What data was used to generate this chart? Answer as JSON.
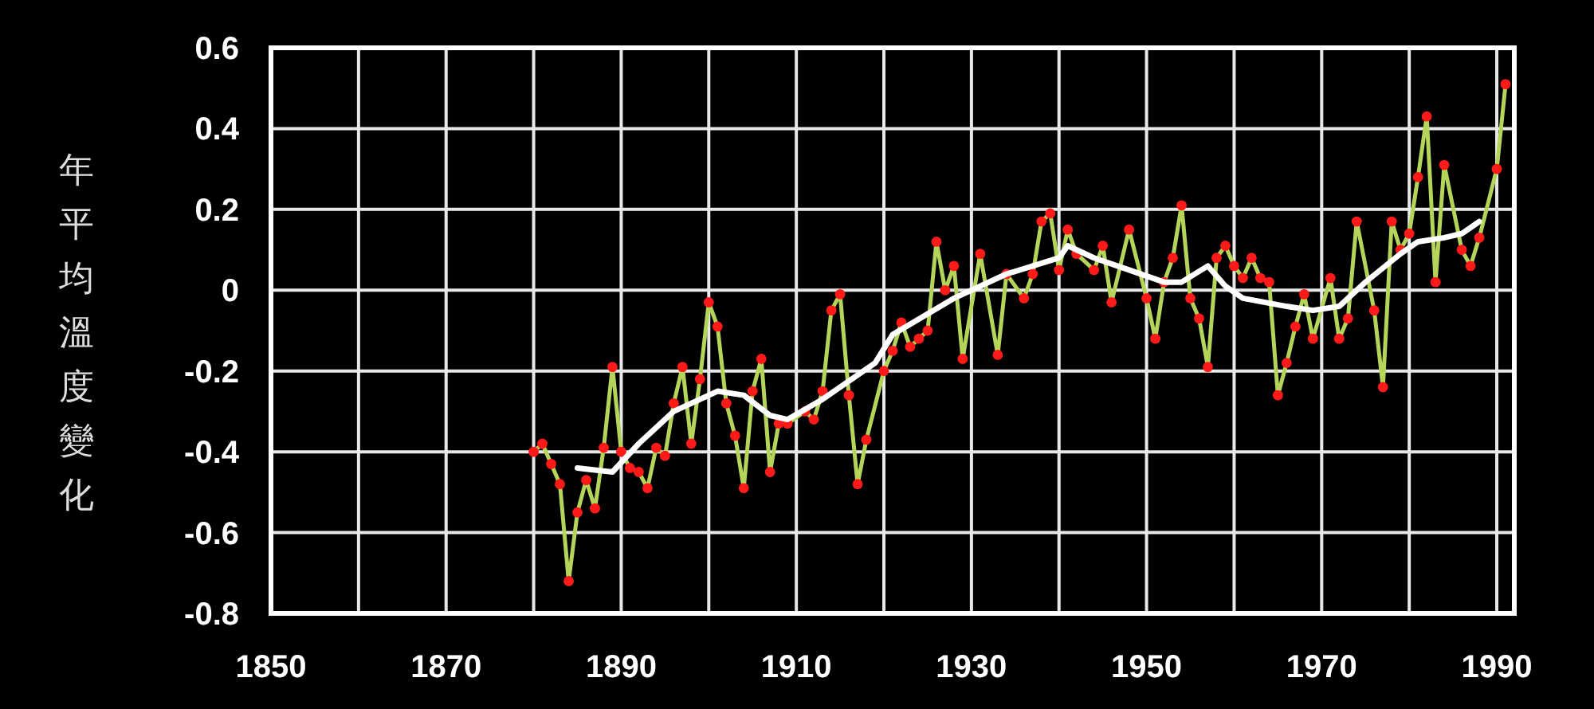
{
  "chart_data": {
    "type": "line",
    "ylabel": "年平均溫度變化",
    "xlim": [
      1850,
      1992
    ],
    "ylim": [
      -0.8,
      0.6
    ],
    "xticks": [
      1850,
      {
        "value": 1860,
        "label": null
      },
      1870,
      {
        "value": 1880,
        "label": null
      },
      1890,
      {
        "value": 1900,
        "label": null
      },
      1910,
      {
        "value": 1920,
        "label": null
      },
      1930,
      {
        "value": 1940,
        "label": null
      },
      1950,
      {
        "value": 1960,
        "label": null
      },
      1970,
      {
        "value": 1980,
        "label": null
      },
      1990
    ],
    "yticks": [
      -0.8,
      -0.6,
      -0.4,
      -0.2,
      0,
      0.2,
      0.4,
      0.6
    ],
    "grid": true,
    "series": [
      {
        "color": "#b5d55a",
        "marker": "circle",
        "x": [
          1880,
          1881,
          1882,
          1883,
          1884,
          1885,
          1886,
          1887,
          1888,
          1889,
          1890,
          1891,
          1892,
          1893,
          1894,
          1895,
          1896,
          1897,
          1898,
          1899,
          1900,
          1901,
          1902,
          1903,
          1904,
          1905,
          1906,
          1907,
          1908,
          1909,
          1911,
          1912,
          1913,
          1914,
          1915,
          1916,
          1917,
          1918,
          1920,
          1921,
          1922,
          1923,
          1924,
          1925,
          1926,
          1927,
          1928,
          1929,
          1931,
          1933,
          1934,
          1936,
          1937,
          1938,
          1939,
          1940,
          1941,
          1942,
          1944,
          1945,
          1946,
          1948,
          1950,
          1951,
          1952,
          1953,
          1954,
          1955,
          1956,
          1957,
          1958,
          1959,
          1960,
          1961,
          1962,
          1963,
          1964,
          1965,
          1966,
          1967,
          1968,
          1969,
          1971,
          1972,
          1973,
          1974,
          1976,
          1977,
          1978,
          1979,
          1980,
          1981,
          1982,
          1983,
          1984,
          1986,
          1987,
          1988,
          1990,
          1991
        ],
        "values": [
          -0.4,
          -0.38,
          -0.43,
          -0.48,
          -0.72,
          -0.55,
          -0.47,
          -0.54,
          -0.39,
          -0.19,
          -0.4,
          -0.44,
          -0.45,
          -0.49,
          -0.39,
          -0.41,
          -0.28,
          -0.19,
          -0.38,
          -0.22,
          -0.03,
          -0.09,
          -0.28,
          -0.36,
          -0.49,
          -0.25,
          -0.17,
          -0.45,
          -0.33,
          -0.33,
          -0.3,
          -0.32,
          -0.25,
          -0.05,
          -0.01,
          -0.26,
          -0.48,
          -0.37,
          -0.2,
          -0.15,
          -0.08,
          -0.14,
          -0.12,
          -0.1,
          0.12,
          0.0,
          0.06,
          -0.17,
          0.09,
          -0.16,
          0.04,
          -0.02,
          0.04,
          0.17,
          0.19,
          0.05,
          0.15,
          0.09,
          0.05,
          0.11,
          -0.03,
          0.15,
          -0.02,
          -0.12,
          0.02,
          0.08,
          0.21,
          -0.02,
          -0.07,
          -0.19,
          0.08,
          0.11,
          0.06,
          0.03,
          0.08,
          0.03,
          0.02,
          -0.26,
          -0.18,
          -0.09,
          -0.01,
          -0.12,
          0.03,
          -0.12,
          -0.07,
          0.17,
          -0.05,
          -0.24,
          0.17,
          0.1,
          0.14,
          0.28,
          0.43,
          0.02,
          0.31,
          0.1,
          0.06,
          0.13,
          0.3,
          0.51
        ]
      },
      {
        "color": "#ffffff",
        "marker": "none",
        "x": [
          1885,
          1889,
          1892,
          1896,
          1901,
          1904,
          1907,
          1909,
          1913,
          1919,
          1921,
          1928,
          1934,
          1940,
          1941,
          1944,
          1948,
          1952,
          1954,
          1957,
          1959,
          1961,
          1966,
          1969,
          1972,
          1975,
          1979,
          1981,
          1984,
          1986,
          1988
        ],
        "values": [
          -0.44,
          -0.45,
          -0.38,
          -0.3,
          -0.25,
          -0.26,
          -0.31,
          -0.32,
          -0.27,
          -0.18,
          -0.11,
          -0.02,
          0.04,
          0.08,
          0.11,
          0.08,
          0.05,
          0.02,
          0.02,
          0.06,
          0.01,
          -0.02,
          -0.04,
          -0.05,
          -0.04,
          0.02,
          0.09,
          0.12,
          0.13,
          0.14,
          0.17
        ]
      }
    ]
  }
}
